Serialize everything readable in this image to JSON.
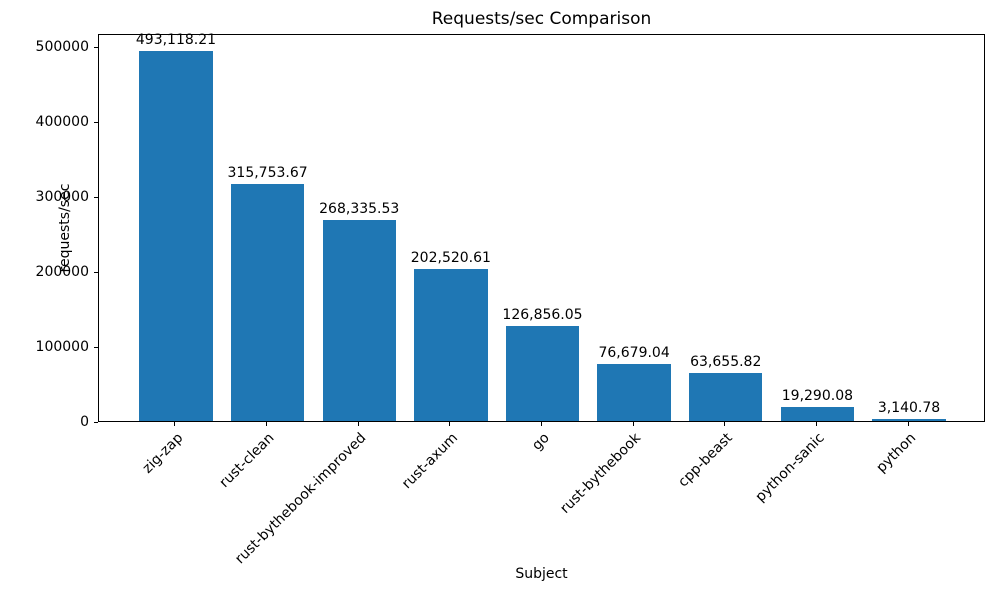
{
  "figure": {
    "background": "#ffffff",
    "text_color": "#000000"
  },
  "chart_data": {
    "type": "bar",
    "title": "Requests/sec Comparison",
    "xlabel": "Subject",
    "ylabel": "requests/sec",
    "categories": [
      "zig-zap",
      "rust-clean",
      "rust-bythebook-improved",
      "rust-axum",
      "go",
      "rust-bythebook",
      "cpp-beast",
      "python-sanic",
      "python"
    ],
    "values": [
      493118.21,
      315753.67,
      268335.53,
      202520.61,
      126856.05,
      76679.04,
      63655.82,
      19290.08,
      3140.78
    ],
    "value_labels": [
      "493,118.21",
      "315,753.67",
      "268,335.53",
      "202,520.61",
      "126,856.05",
      "76,679.04",
      "63,655.82",
      "19,290.08",
      "3,140.78"
    ],
    "yticks": [
      0,
      100000,
      200000,
      300000,
      400000,
      500000
    ],
    "ytick_labels": [
      "0",
      "100000",
      "200000",
      "300000",
      "400000",
      "500000"
    ],
    "ylim": [
      0,
      517774
    ],
    "bar_color": "#1f77b4",
    "grid": false,
    "legend": null
  }
}
